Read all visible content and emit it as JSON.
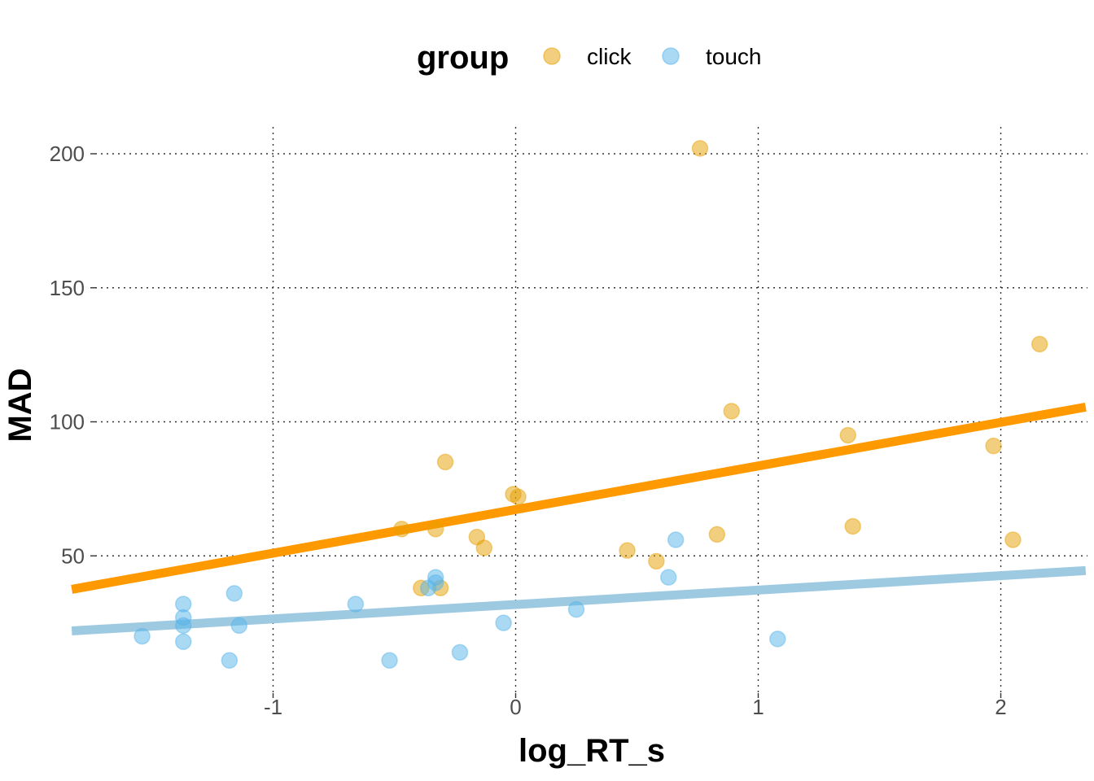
{
  "chart_data": {
    "type": "scatter",
    "xlabel": "log_RT_s",
    "ylabel": "MAD",
    "xlim": [
      -1.83,
      2.35
    ],
    "ylim": [
      -5,
      210
    ],
    "x_ticks": [
      -1,
      0,
      1,
      2
    ],
    "y_ticks": [
      50,
      100,
      150,
      200
    ],
    "x_tick_labels": [
      "-1",
      "0",
      "1",
      "2"
    ],
    "y_tick_labels": [
      "50",
      "100",
      "150",
      "200"
    ],
    "grid": true,
    "legend": {
      "title": "group",
      "position": "top"
    },
    "series": [
      {
        "name": "click",
        "color": "#E69F00",
        "line_color": "#FF9900",
        "points": [
          {
            "x": 0.76,
            "y": 202
          },
          {
            "x": 2.16,
            "y": 129
          },
          {
            "x": 0.89,
            "y": 104
          },
          {
            "x": 1.37,
            "y": 95
          },
          {
            "x": 1.97,
            "y": 91
          },
          {
            "x": -0.29,
            "y": 85
          },
          {
            "x": -0.01,
            "y": 73
          },
          {
            "x": 0.01,
            "y": 72
          },
          {
            "x": 1.39,
            "y": 61
          },
          {
            "x": -0.47,
            "y": 60
          },
          {
            "x": -0.33,
            "y": 60
          },
          {
            "x": 0.83,
            "y": 58
          },
          {
            "x": -0.16,
            "y": 57
          },
          {
            "x": 2.05,
            "y": 56
          },
          {
            "x": -0.13,
            "y": 53
          },
          {
            "x": 0.46,
            "y": 52
          },
          {
            "x": 0.58,
            "y": 48
          },
          {
            "x": -0.39,
            "y": 38
          },
          {
            "x": -0.31,
            "y": 38
          }
        ],
        "fit_line": [
          [
            -1.83,
            37.5
          ],
          [
            2.35,
            105.5
          ]
        ]
      },
      {
        "name": "touch",
        "color": "#56B4E9",
        "line_color": "#9ECAE1",
        "points": [
          {
            "x": 0.66,
            "y": 56
          },
          {
            "x": 0.63,
            "y": 42
          },
          {
            "x": -0.33,
            "y": 42
          },
          {
            "x": -0.33,
            "y": 40
          },
          {
            "x": -0.36,
            "y": 38
          },
          {
            "x": -1.16,
            "y": 36
          },
          {
            "x": -0.66,
            "y": 32
          },
          {
            "x": -1.37,
            "y": 32
          },
          {
            "x": 0.25,
            "y": 30
          },
          {
            "x": -1.37,
            "y": 27
          },
          {
            "x": -0.05,
            "y": 25
          },
          {
            "x": -1.37,
            "y": 24
          },
          {
            "x": -1.14,
            "y": 24
          },
          {
            "x": -1.54,
            "y": 20
          },
          {
            "x": 1.08,
            "y": 19
          },
          {
            "x": -1.37,
            "y": 18
          },
          {
            "x": -0.23,
            "y": 14
          },
          {
            "x": -1.18,
            "y": 11
          },
          {
            "x": -0.52,
            "y": 11
          }
        ],
        "fit_line": [
          [
            -1.83,
            22
          ],
          [
            2.35,
            44.5
          ]
        ]
      }
    ]
  }
}
